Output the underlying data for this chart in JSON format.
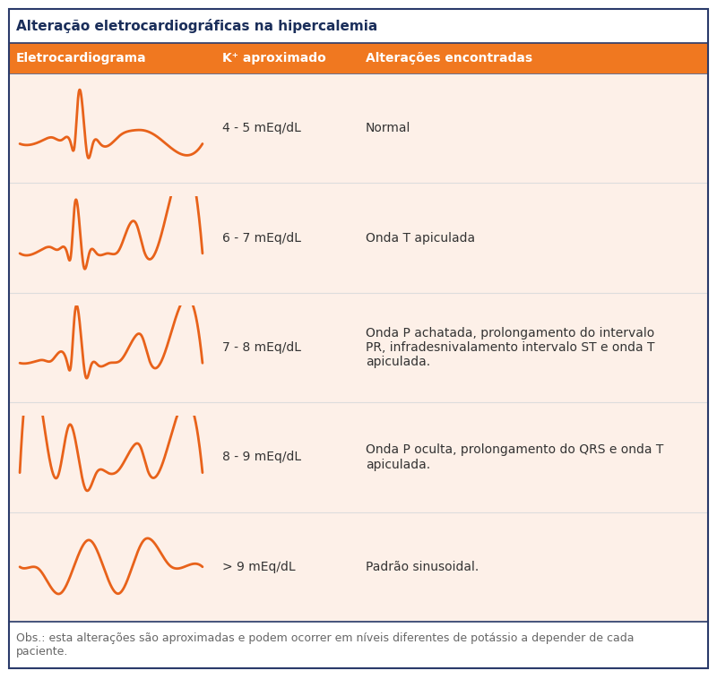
{
  "title": "Alteração eletrocardiográficas na hipercalemia",
  "header_bg": "#F07820",
  "header_text_color": "#FFFFFF",
  "title_text_color": "#1a2e5a",
  "bg_color": "#FFFFFF",
  "row_bg": "#FDF0E8",
  "border_color": "#2a3a6a",
  "ecg_color": "#E8621A",
  "col_headers": [
    "Eletrocardiograma",
    "K⁺ aproximado",
    "Alterações encontradas"
  ],
  "rows": [
    {
      "k_range": "4 - 5 mEq/dL",
      "description": "Normal",
      "ecg_type": "normal"
    },
    {
      "k_range": "6 - 7 mEq/dL",
      "description": "Onda T apiculada",
      "ecg_type": "peaked_t"
    },
    {
      "k_range": "7 - 8 mEq/dL",
      "description": "Onda P achatada, prolongamento do intervalo\nPR, infradesnivalamento intervalo ST e onda T\napiculada.",
      "ecg_type": "flat_p_peaked_t"
    },
    {
      "k_range": "8 - 9 mEq/dL",
      "description": "Onda P oculta, prolongamento do QRS e onda T\napiculada.",
      "ecg_type": "no_p_wide_qrs"
    },
    {
      "k_range": "> 9 mEq/dL",
      "description": "Padrão sinusoidal.",
      "ecg_type": "sinusoidal"
    }
  ],
  "footer_text": "Obs.: esta alterações são aproximadas e podem ocorrer em níveis diferentes de potássio a depender de cada\npaciente.",
  "title_fontsize": 11,
  "header_fontsize": 10,
  "body_fontsize": 10,
  "footer_fontsize": 9
}
